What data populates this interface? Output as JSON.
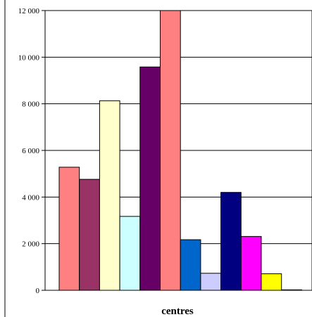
{
  "chart_data": {
    "type": "bar",
    "xlabel": "centres",
    "ylabel": "",
    "ylim": [
      0,
      12000
    ],
    "y_ticks": [
      0,
      2000,
      4000,
      6000,
      8000,
      10000,
      12000
    ],
    "y_tick_labels": [
      "0",
      "2 000",
      "4 000",
      "6 000",
      "8 000",
      "10 000",
      "12 000"
    ],
    "grid": true,
    "legend": "none",
    "bars": [
      {
        "value": 5280,
        "color": "#ff8080"
      },
      {
        "value": 4760,
        "color": "#993366"
      },
      {
        "value": 8130,
        "color": "#ffffcc"
      },
      {
        "value": 3170,
        "color": "#ccffff"
      },
      {
        "value": 9580,
        "color": "#660066"
      },
      {
        "value": 12000,
        "color": "#ff8080"
      },
      {
        "value": 2170,
        "color": "#0066cc"
      },
      {
        "value": 730,
        "color": "#ccccff"
      },
      {
        "value": 4200,
        "color": "#000080"
      },
      {
        "value": 2310,
        "color": "#ff00ff"
      },
      {
        "value": 710,
        "color": "#ffff00"
      },
      {
        "value": 20,
        "color": "#00ffff"
      }
    ]
  }
}
